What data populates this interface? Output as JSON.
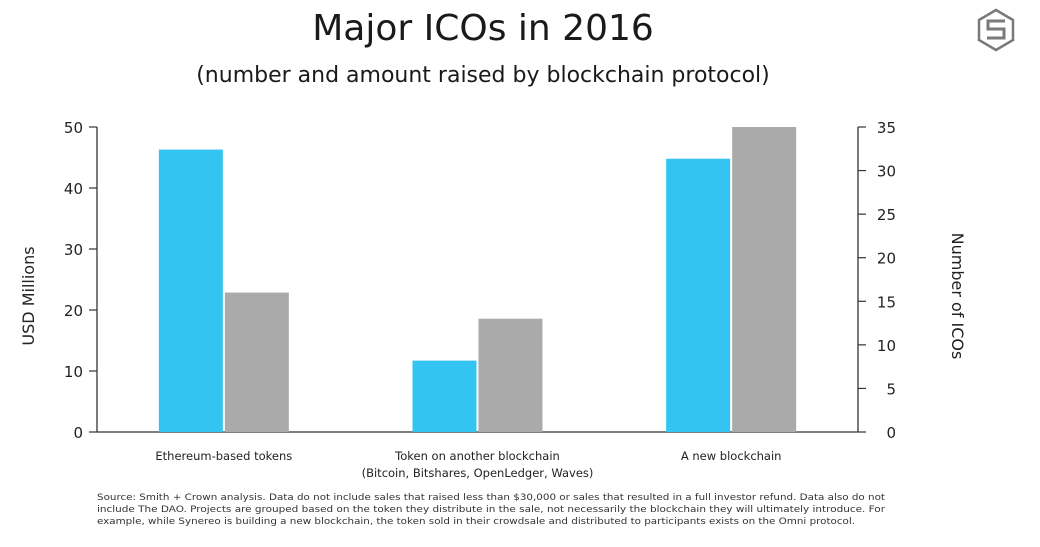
{
  "chart_data": {
    "type": "bar",
    "title": "Major ICOs in 2016",
    "subtitle": "(number and amount raised by blockchain protocol)",
    "categories": [
      [
        "Ethereum-based tokens"
      ],
      [
        "Token on another blockchain",
        "(Bitcoin, Bitshares, OpenLedger, Waves)"
      ],
      [
        "A new blockchain"
      ]
    ],
    "series": [
      {
        "values": [
          46.3,
          11.7,
          44.8
        ],
        "axis": "left",
        "color": "#33c4f2"
      },
      {
        "values": [
          16,
          13,
          35
        ],
        "axis": "right",
        "color": "#aaaaaa"
      }
    ],
    "ylabel": "USD Millions",
    "ylabel_right": "Number of ICOs",
    "ylim": [
      0,
      50
    ],
    "ylim_right": [
      0,
      35
    ],
    "yticks": [
      0,
      10,
      20,
      30,
      40,
      50
    ],
    "yticks_right": [
      0,
      5,
      10,
      15,
      20,
      25,
      30,
      35
    ],
    "grid": false,
    "source_lines": [
      "Source: Smith + Crown analysis. Data do not include sales that raised less than $30,000 or sales that resulted in a full investor refund. Data also do not",
      "include The DAO. Projects are grouped based on the token they distribute in the sale, not necessarily the blockchain they will ultimately introduce. For",
      "example, while Synereo is building a new blockchain, the token sold in their crowdsale and distributed to participants exists on the Omni protocol."
    ]
  },
  "logo": {
    "icon": "smith-crown-logo-icon",
    "color": "#7a7a7a"
  }
}
